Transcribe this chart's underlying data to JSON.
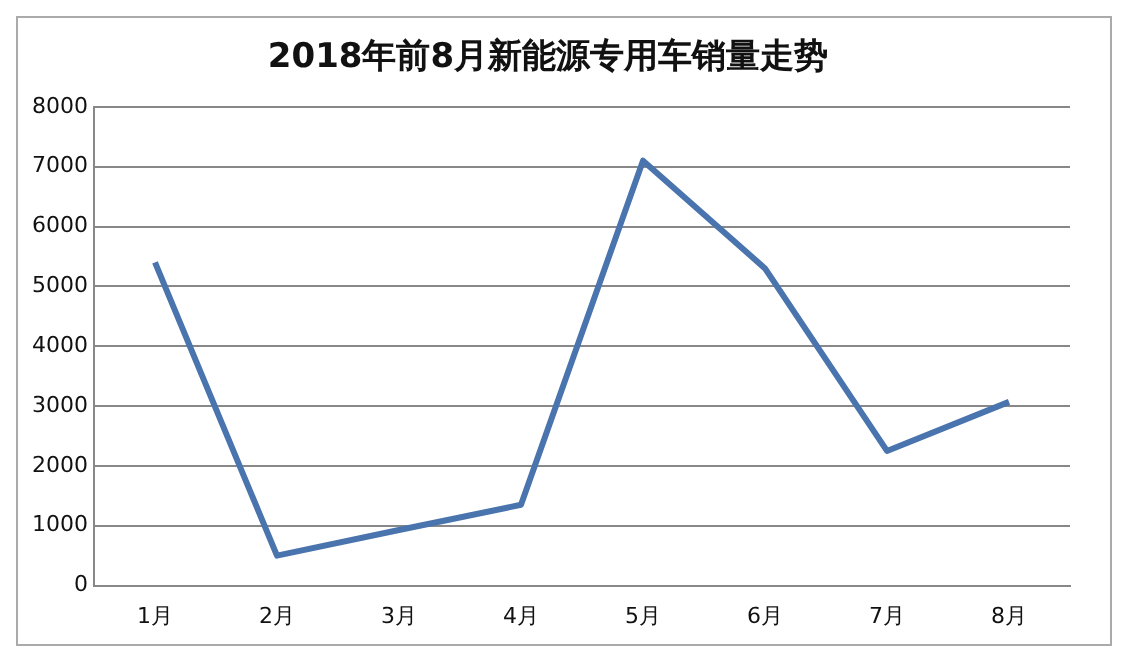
{
  "chart_data": {
    "type": "line",
    "title": "2018年前8月新能源专用车销量走势",
    "categories": [
      "1月",
      "2月",
      "3月",
      "4月",
      "5月",
      "6月",
      "7月",
      "8月"
    ],
    "series": [
      {
        "color": "#4a74ad",
        "values": [
          5400,
          500,
          930,
          1350,
          7100,
          5300,
          2250,
          3070
        ]
      }
    ],
    "ylim": [
      0,
      8000
    ],
    "yticks": [
      0,
      1000,
      2000,
      3000,
      4000,
      5000,
      6000,
      7000,
      8000
    ],
    "grid": "y",
    "legend": false,
    "marker": "none"
  }
}
